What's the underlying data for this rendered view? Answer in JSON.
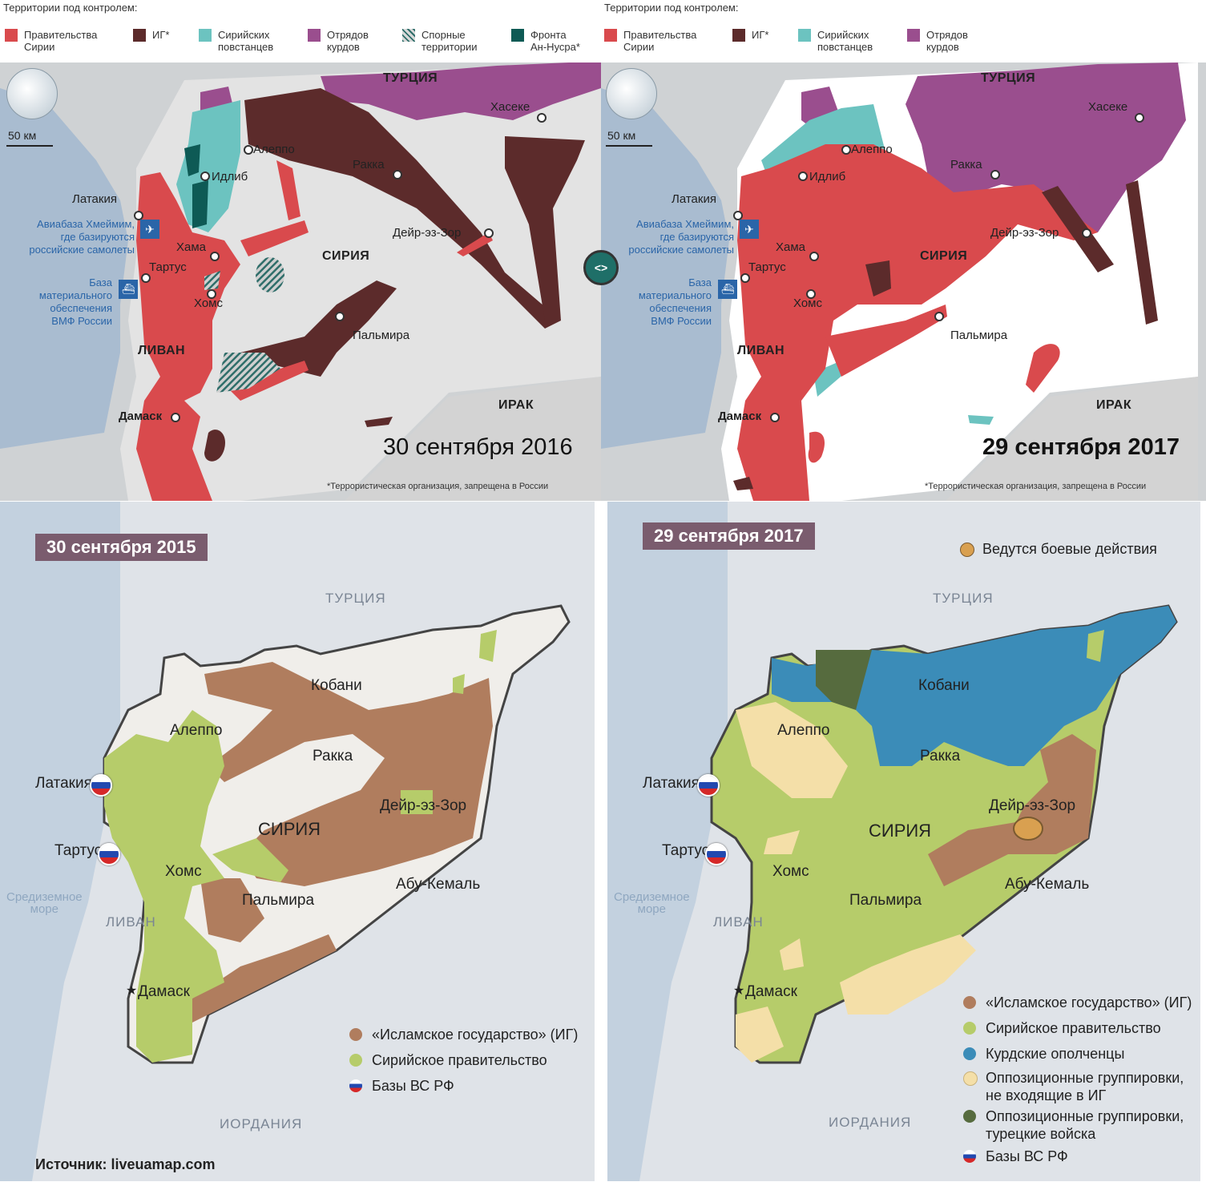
{
  "top_legend_title": "Территории под контролем:",
  "top_left": {
    "legend": [
      {
        "label": "Правительства\nСирии",
        "color": "#d94a4d"
      },
      {
        "label": "ИГ*",
        "color": "#5c2b2b"
      },
      {
        "label": "Сирийских\nповстанцев",
        "color": "#6cc3c0"
      },
      {
        "label": "Отрядов\nкурдов",
        "color": "#9a4e8e"
      },
      {
        "label": "Спорные\nтерритории",
        "color": "hatched"
      },
      {
        "label": "Фронта\nАн-Нусра*",
        "color": "#0e5a55"
      }
    ],
    "date": "30 сентября 2016",
    "scale": "50 км"
  },
  "top_right": {
    "legend": [
      {
        "label": "Правительства\nСирии",
        "color": "#d94a4d"
      },
      {
        "label": "ИГ*",
        "color": "#5c2b2b"
      },
      {
        "label": "Сирийских\nповстанцев",
        "color": "#6cc3c0"
      },
      {
        "label": "Отрядов\nкурдов",
        "color": "#9a4e8e"
      }
    ],
    "date": "29 сентября 2017",
    "scale": "50 км"
  },
  "top_labels": {
    "turkey": "ТУРЦИЯ",
    "syria": "СИРИЯ",
    "iraq": "ИРАК",
    "lebanon": "ЛИВАН",
    "hasake": "Хасеке",
    "aleppo": "Алеппо",
    "idlib": "Идлиб",
    "raqqa": "Ракка",
    "latakia": "Латакия",
    "deir": "Дейр-эз-Зор",
    "hama": "Хама",
    "tartus": "Тартус",
    "homs": "Хомс",
    "palmyra": "Пальмира",
    "damascus": "Дамаск",
    "airbase": "Авиабаза Хмеймим,\nгде базируются\nроссийские самолеты",
    "navybase": "База\nматериального\nобеспечения\nВМФ России",
    "footnote": "*Террористическая организация, запрещена в России"
  },
  "swap_icon": "<>",
  "bottom_left": {
    "date": "30 сентября 2015",
    "legend": [
      {
        "label": "«Исламское государство» (ИГ)",
        "color": "#b07d5e"
      },
      {
        "label": "Сирийское правительство",
        "color": "#b6cc6a"
      },
      {
        "label": "Базы ВС РФ",
        "color": "flag"
      }
    ],
    "source": "Источник: liveuamap.com"
  },
  "bottom_right": {
    "date": "29 сентября 2017",
    "fighting": "Ведутся боевые действия",
    "legend": [
      {
        "label": "«Исламское государство» (ИГ)",
        "color": "#b07d5e"
      },
      {
        "label": "Сирийское правительство",
        "color": "#b6cc6a"
      },
      {
        "label": "Курдские ополченцы",
        "color": "#3b8cb8"
      },
      {
        "label": "Оппозиционные группировки,\nне входящие в ИГ",
        "color": "#f4dfa8"
      },
      {
        "label": "Оппозиционные группировки,\nтурецкие войска",
        "color": "#566b3e"
      },
      {
        "label": "Базы ВС РФ",
        "color": "flag"
      }
    ]
  },
  "bottom_labels": {
    "turkey": "ТУРЦИЯ",
    "syria": "СИРИЯ",
    "kobani": "Кобани",
    "aleppo": "Алеппо",
    "raqqa": "Ракка",
    "latakia": "Латакия",
    "deir": "Дейр-эз-Зор",
    "tartus": "Тартус",
    "homs": "Хомс",
    "palmyra": "Пальмира",
    "abu_kemal": "Абу-Кемаль",
    "lebanon": "ЛИВАН",
    "damascus": "Дамаск",
    "jordan": "ИОРДАНИЯ",
    "sea": "Средиземное\nморе"
  }
}
